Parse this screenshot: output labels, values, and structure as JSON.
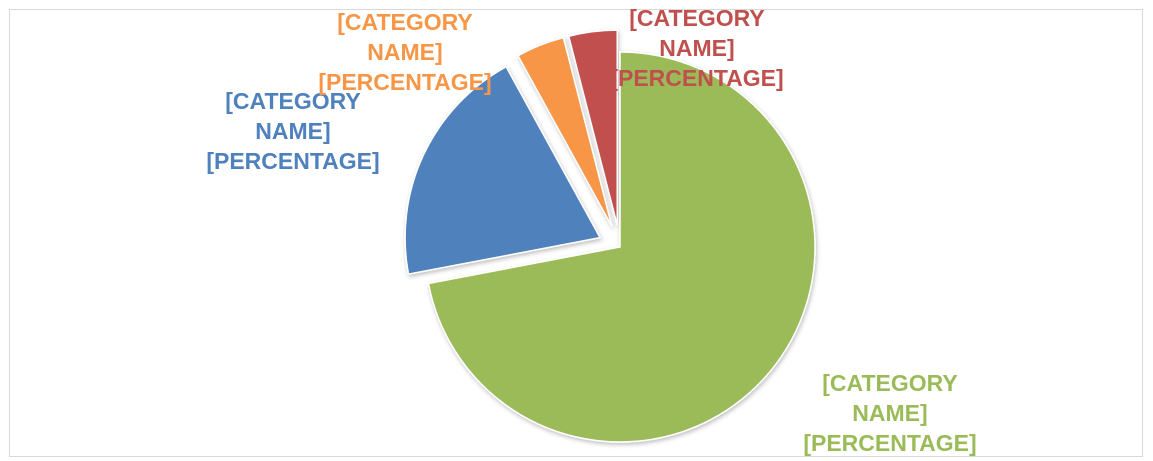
{
  "chart_data": {
    "type": "pie",
    "values": [
      72,
      20,
      4,
      4
    ],
    "value_labels": [
      "[CATEGORY NAME] [PERCENTAGE]",
      "[CATEGORY NAME] [PERCENTAGE]",
      "[CATEGORY NAME] [PERCENTAGE]",
      "[CATEGORY NAME] [PERCENTAGE]"
    ],
    "colors": [
      "#9bbb59",
      "#4f81bd",
      "#f79646",
      "#c0504d"
    ]
  }
}
